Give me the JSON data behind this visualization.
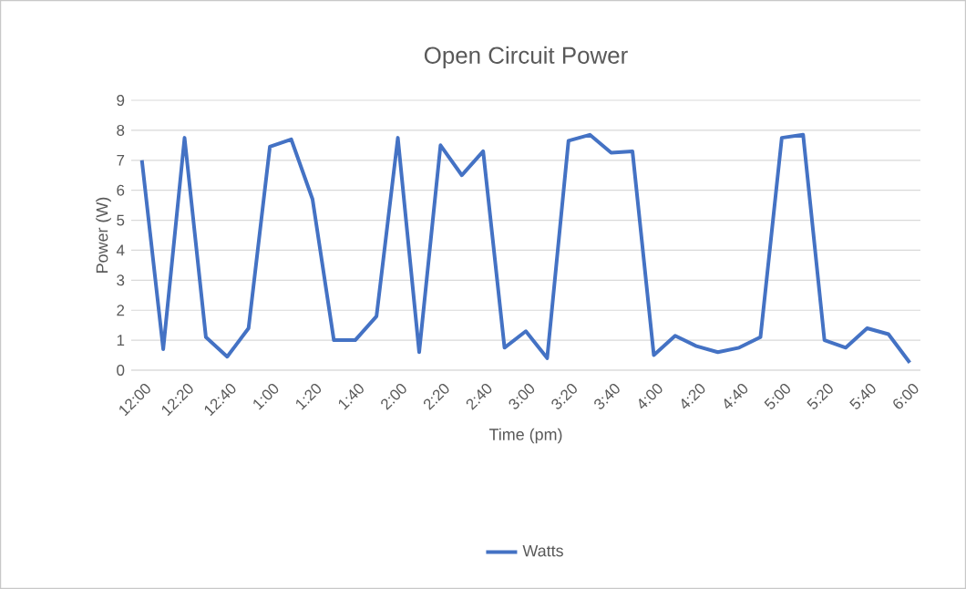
{
  "chart_data": {
    "type": "line",
    "title": "Open Circuit Power",
    "xlabel": "Time (pm)",
    "ylabel": "Power (W)",
    "categories": [
      "12:00",
      null,
      "12:20",
      null,
      "12:40",
      null,
      "1:00",
      null,
      "1:20",
      null,
      "1:40",
      null,
      "2:00",
      null,
      "2:20",
      null,
      "2:40",
      null,
      "3:00",
      null,
      "3:20",
      null,
      "3:40",
      null,
      "4:00",
      null,
      "4:20",
      null,
      "4:40",
      null,
      "5:00",
      null,
      "5:20",
      null,
      "5:40",
      null,
      "6:00"
    ],
    "series": [
      {
        "name": "Watts",
        "color": "#4472c4",
        "values": [
          7.0,
          0.7,
          7.75,
          1.1,
          0.45,
          1.4,
          7.45,
          7.7,
          5.7,
          1.0,
          1.0,
          1.8,
          7.75,
          0.6,
          7.5,
          6.5,
          7.3,
          0.75,
          1.3,
          0.4,
          7.65,
          7.85,
          7.25,
          7.3,
          0.5,
          1.15,
          0.8,
          0.6,
          0.75,
          1.1,
          7.75,
          7.85,
          1.0,
          0.75,
          1.4,
          1.2,
          0.25
        ]
      }
    ],
    "ylim": [
      0,
      9
    ],
    "yticks": [
      0,
      1,
      2,
      3,
      4,
      5,
      6,
      7,
      8,
      9
    ],
    "grid": "y",
    "legend": "bottom"
  }
}
